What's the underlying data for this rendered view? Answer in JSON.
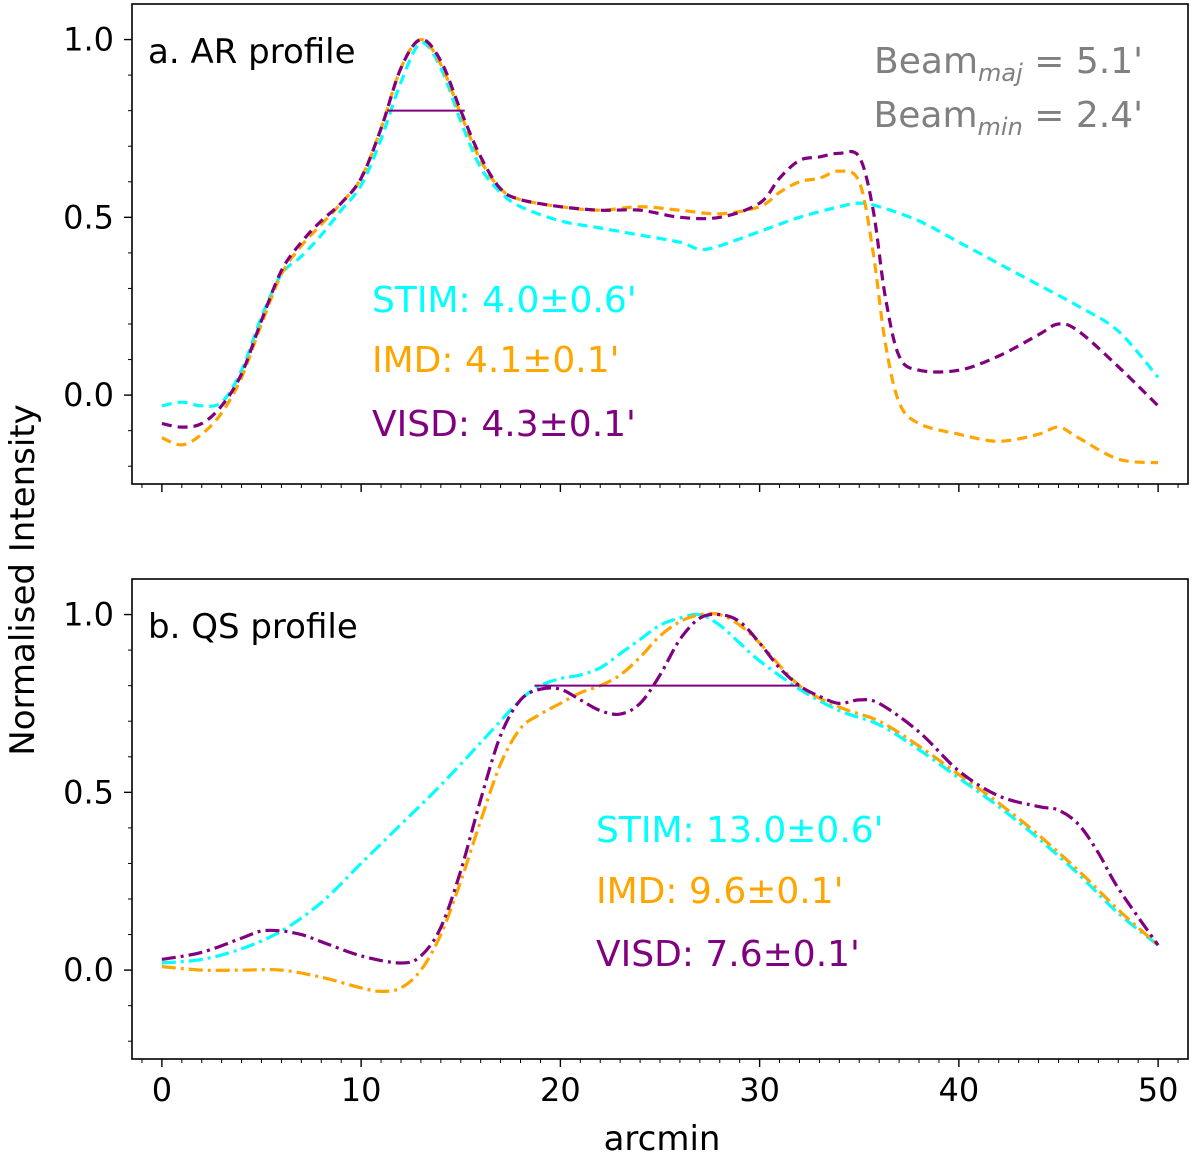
{
  "figure": {
    "xlabel": "arcmin",
    "ylabel": "Normalised Intensity"
  },
  "chart_data": [
    {
      "type": "line",
      "title": "a. AR profile",
      "xlabel": "arcmin",
      "ylabel": "Normalised Intensity",
      "xlim": [
        -1.5,
        51.5
      ],
      "ylim": [
        -0.25,
        1.1
      ],
      "xticks": [
        0,
        10,
        20,
        30,
        40,
        50
      ],
      "yticks": [
        0.0,
        0.5,
        1.0
      ],
      "line_style": "dashed",
      "grid": false,
      "beam_annotation": {
        "major_label": "Beam",
        "major_sub": "maj",
        "major_value": " = 5.1'",
        "minor_label": "Beam",
        "minor_sub": "min",
        "minor_value": " = 2.4'"
      },
      "fwhm_line": {
        "y": 0.8,
        "x_start": 11.3,
        "x_end": 15.2,
        "color": "#800080"
      },
      "series": [
        {
          "name": "STIM",
          "color": "#00ffff",
          "label": "STIM: 4.0±0.6'",
          "x": [
            0,
            1,
            2,
            3,
            4,
            5,
            6,
            7,
            8,
            9,
            10,
            11,
            12,
            13,
            14,
            15,
            16,
            17,
            18,
            20,
            22,
            24,
            26,
            27,
            28,
            30,
            32,
            34,
            35,
            36,
            38,
            40,
            42,
            44,
            46,
            48,
            50
          ],
          "y": [
            -0.03,
            -0.02,
            -0.03,
            -0.02,
            0.07,
            0.22,
            0.34,
            0.39,
            0.45,
            0.52,
            0.59,
            0.72,
            0.88,
            0.99,
            0.92,
            0.77,
            0.64,
            0.57,
            0.53,
            0.49,
            0.47,
            0.45,
            0.43,
            0.41,
            0.42,
            0.46,
            0.5,
            0.53,
            0.54,
            0.53,
            0.49,
            0.43,
            0.37,
            0.31,
            0.25,
            0.18,
            0.05
          ]
        },
        {
          "name": "IMD",
          "color": "#ffa500",
          "label": "IMD: 4.1±0.1'",
          "x": [
            0,
            1,
            2,
            3,
            4,
            5,
            6,
            7,
            8,
            9,
            10,
            11,
            12,
            13,
            14,
            15,
            16,
            17,
            18,
            20,
            22,
            24,
            26,
            28,
            30,
            31,
            32,
            33,
            34,
            35,
            35.7,
            36.3,
            37,
            38,
            40,
            42,
            44,
            45,
            46,
            48,
            50
          ],
          "y": [
            -0.12,
            -0.14,
            -0.11,
            -0.05,
            0.05,
            0.2,
            0.34,
            0.42,
            0.48,
            0.54,
            0.61,
            0.75,
            0.92,
            1.0,
            0.93,
            0.79,
            0.66,
            0.58,
            0.55,
            0.53,
            0.52,
            0.53,
            0.52,
            0.51,
            0.53,
            0.57,
            0.6,
            0.61,
            0.63,
            0.6,
            0.4,
            0.15,
            -0.02,
            -0.08,
            -0.11,
            -0.13,
            -0.11,
            -0.09,
            -0.12,
            -0.18,
            -0.19
          ]
        },
        {
          "name": "VISD",
          "color": "#800080",
          "label": "VISD: 4.3±0.1'",
          "x": [
            0,
            1,
            2,
            3,
            4,
            5,
            6,
            7,
            8,
            9,
            10,
            11,
            12,
            13,
            14,
            15,
            16,
            17,
            18,
            20,
            22,
            24,
            26,
            28,
            30,
            31,
            32,
            33,
            34,
            35,
            35.7,
            36.3,
            37,
            38,
            40,
            42,
            44,
            45,
            46,
            48,
            50
          ],
          "y": [
            -0.08,
            -0.09,
            -0.08,
            -0.03,
            0.06,
            0.21,
            0.35,
            0.43,
            0.49,
            0.54,
            0.61,
            0.75,
            0.92,
            1.0,
            0.94,
            0.8,
            0.67,
            0.58,
            0.55,
            0.53,
            0.52,
            0.52,
            0.5,
            0.5,
            0.54,
            0.61,
            0.66,
            0.67,
            0.68,
            0.67,
            0.52,
            0.28,
            0.11,
            0.07,
            0.07,
            0.11,
            0.17,
            0.2,
            0.18,
            0.08,
            -0.03
          ]
        }
      ]
    },
    {
      "type": "line",
      "title": "b. QS profile",
      "xlabel": "arcmin",
      "ylabel": "Normalised Intensity",
      "xlim": [
        -1.5,
        51.5
      ],
      "ylim": [
        -0.25,
        1.1
      ],
      "xticks": [
        0,
        10,
        20,
        30,
        40,
        50
      ],
      "yticks": [
        0.0,
        0.5,
        1.0
      ],
      "line_style": "dashdot",
      "grid": false,
      "fwhm_line": {
        "y": 0.8,
        "x_start": 18.7,
        "x_end": 32.0,
        "color": "#800080"
      },
      "series": [
        {
          "name": "STIM",
          "color": "#00ffff",
          "label": "STIM: 13.0±0.6'",
          "x": [
            0,
            2,
            4,
            6,
            8,
            10,
            12,
            14,
            16,
            18,
            19,
            20,
            21,
            22,
            23,
            24,
            25,
            26,
            27,
            28,
            29,
            30,
            32,
            34,
            36,
            38,
            40,
            42,
            44,
            46,
            48,
            50
          ],
          "y": [
            0.02,
            0.03,
            0.06,
            0.11,
            0.19,
            0.3,
            0.41,
            0.52,
            0.64,
            0.76,
            0.8,
            0.82,
            0.83,
            0.85,
            0.89,
            0.93,
            0.97,
            0.99,
            1.0,
            0.97,
            0.92,
            0.87,
            0.79,
            0.73,
            0.69,
            0.62,
            0.54,
            0.46,
            0.37,
            0.27,
            0.16,
            0.07
          ]
        },
        {
          "name": "IMD",
          "color": "#ffa500",
          "label": "IMD: 9.6±0.1'",
          "x": [
            0,
            2,
            4,
            6,
            8,
            10,
            11,
            12,
            13,
            14,
            15,
            16,
            17,
            18,
            19,
            20,
            21,
            22,
            23,
            24,
            25,
            26,
            27,
            28,
            29,
            30,
            32,
            34,
            36,
            38,
            40,
            42,
            44,
            46,
            48,
            50
          ],
          "y": [
            0.01,
            0.0,
            0.0,
            0.0,
            -0.02,
            -0.05,
            -0.06,
            -0.05,
            0.0,
            0.1,
            0.25,
            0.42,
            0.58,
            0.68,
            0.72,
            0.75,
            0.78,
            0.8,
            0.83,
            0.88,
            0.94,
            0.98,
            1.0,
            1.0,
            0.97,
            0.92,
            0.8,
            0.74,
            0.7,
            0.63,
            0.55,
            0.47,
            0.38,
            0.28,
            0.17,
            0.07
          ]
        },
        {
          "name": "VISD",
          "color": "#800080",
          "label": "VISD: 7.6±0.1'",
          "x": [
            0,
            2,
            4,
            5,
            6,
            7,
            8,
            10,
            12,
            13,
            14,
            15,
            16,
            17,
            18,
            19,
            20,
            21,
            22,
            23,
            24,
            25,
            26,
            27,
            28,
            29,
            30,
            31,
            32,
            33,
            34,
            35,
            36,
            38,
            40,
            42,
            44,
            45,
            46,
            47,
            48,
            50
          ],
          "y": [
            0.03,
            0.05,
            0.09,
            0.11,
            0.11,
            0.1,
            0.08,
            0.04,
            0.02,
            0.04,
            0.12,
            0.28,
            0.48,
            0.66,
            0.76,
            0.79,
            0.79,
            0.76,
            0.73,
            0.72,
            0.75,
            0.83,
            0.93,
            0.99,
            1.0,
            0.98,
            0.92,
            0.85,
            0.8,
            0.77,
            0.75,
            0.76,
            0.75,
            0.67,
            0.56,
            0.49,
            0.46,
            0.45,
            0.41,
            0.33,
            0.23,
            0.07
          ]
        }
      ]
    }
  ]
}
